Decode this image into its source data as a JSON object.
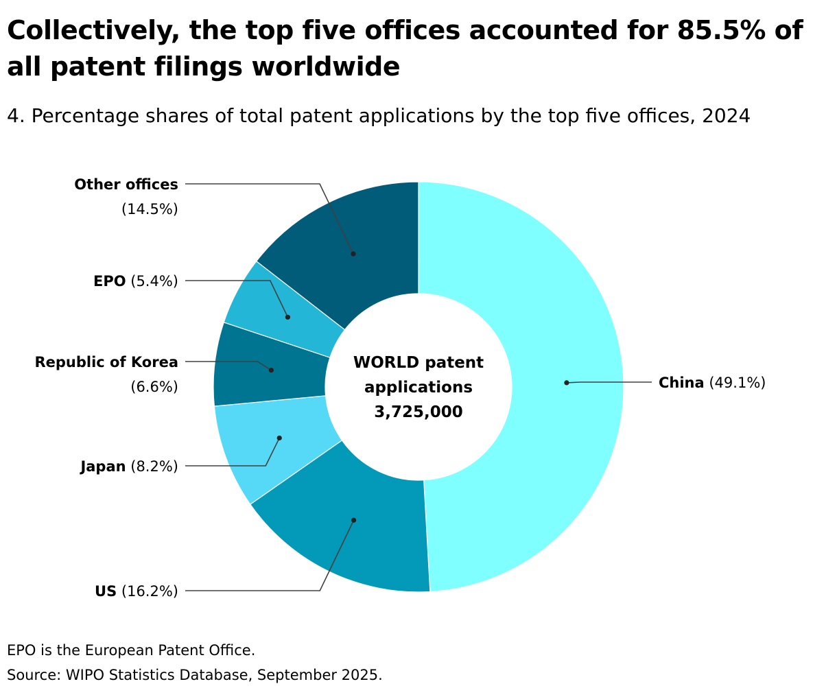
{
  "headline": "Collectively, the top five offices accounted for 85.5% of all patent filings worldwide",
  "subtitle": "4. Percentage shares of total patent applications by the top five offices, 2024",
  "footnote": {
    "note": "EPO is the European Patent Office.",
    "source": "Source: WIPO Statistics Database, September 2025."
  },
  "chart_data": {
    "type": "pie",
    "variant": "donut",
    "center_label": {
      "line1": "WORLD patent",
      "line2": "applications",
      "line3": "3,725,000"
    },
    "total": 3725000,
    "unit": "%",
    "slices": [
      {
        "name": "China",
        "value_label": "(49.1%)",
        "value": 49.1,
        "color": "#7fffff"
      },
      {
        "name": "US",
        "value_label": "(16.2%)",
        "value": 16.2,
        "color": "#0399b8"
      },
      {
        "name": "Japan",
        "value_label": "(8.2%)",
        "value": 8.2,
        "color": "#55d9f6"
      },
      {
        "name": "Republic of Korea",
        "value_label": "(6.6%)",
        "value": 6.6,
        "color": "#007592"
      },
      {
        "name": "EPO",
        "value_label": "(5.4%)",
        "value": 5.4,
        "color": "#23b6d6"
      },
      {
        "name": "Other offices",
        "value_label": "(14.5%)",
        "value": 14.5,
        "color": "#005c78"
      }
    ],
    "start_angle": "12 o'clock",
    "direction": "clockwise"
  }
}
